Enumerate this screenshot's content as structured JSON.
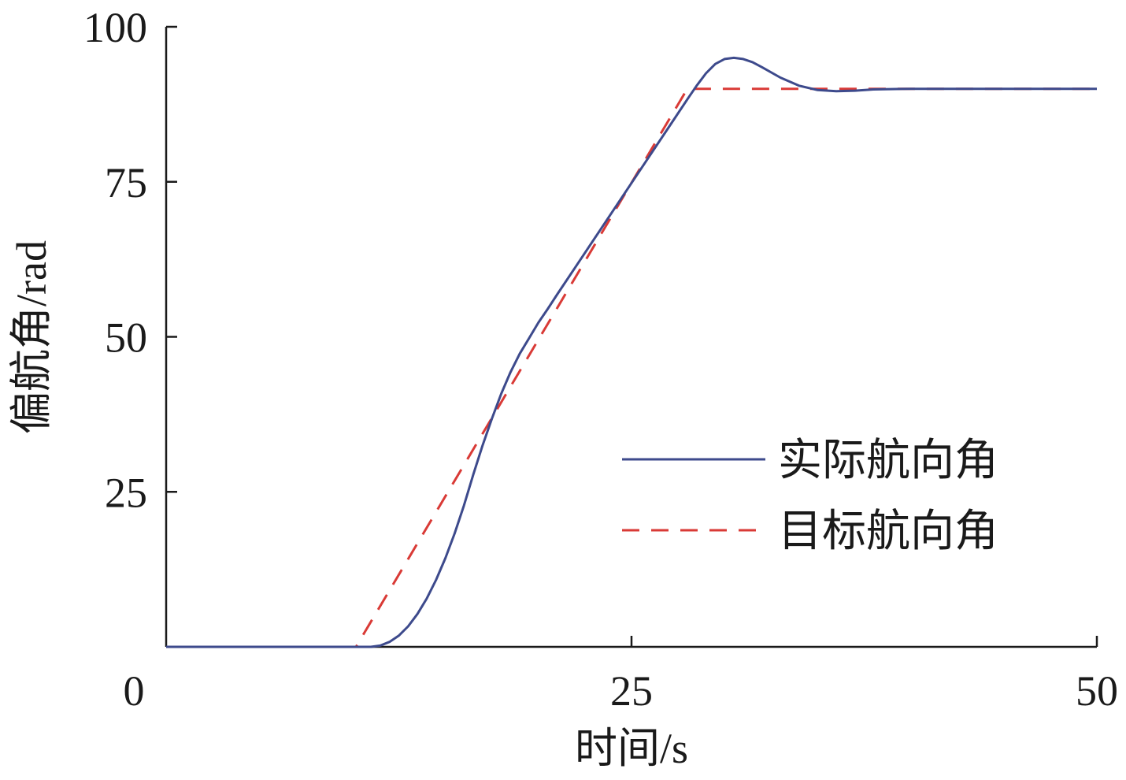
{
  "chart_data": {
    "type": "line",
    "xlabel": "时间/s",
    "ylabel": "偏航角/rad",
    "xlim": [
      0,
      50
    ],
    "ylim": [
      0,
      100
    ],
    "x_ticks": [
      0,
      25,
      50
    ],
    "x_tick_labels": [
      "0",
      "25",
      "50"
    ],
    "y_ticks": [
      25,
      50,
      75,
      100
    ],
    "y_tick_labels": [
      "25",
      "50",
      "75",
      "100"
    ],
    "grid": false,
    "legend_position": "center-right",
    "series": [
      {
        "name": "实际航向角",
        "color": "#3d4a8c",
        "line_style": "solid",
        "x": [
          0,
          10,
          11,
          11.5,
          12,
          12.5,
          13,
          13.5,
          14,
          14.5,
          15,
          15.5,
          16,
          16.5,
          17,
          17.5,
          18,
          18.5,
          19,
          19.5,
          20,
          20.5,
          21,
          22,
          23,
          24,
          25,
          26,
          27,
          28,
          28.5,
          29,
          29.5,
          30,
          30.5,
          31,
          31.5,
          32,
          33,
          34,
          35,
          36,
          37,
          38,
          40,
          42,
          44,
          46,
          48,
          50
        ],
        "y": [
          0,
          0,
          0,
          0.2,
          0.8,
          1.8,
          3.3,
          5.3,
          7.8,
          10.8,
          14.3,
          18.3,
          22.8,
          27.8,
          32.5,
          36.8,
          40.8,
          44.3,
          47.3,
          49.8,
          52.3,
          54.5,
          56.8,
          61.3,
          65.8,
          70.3,
          74.8,
          79.3,
          83.8,
          88.3,
          90.5,
          92.5,
          94.0,
          94.8,
          95.0,
          94.8,
          94.3,
          93.5,
          91.8,
          90.5,
          89.8,
          89.6,
          89.7,
          89.9,
          90.0,
          90.0,
          90.0,
          90.0,
          90.0,
          90.0
        ]
      },
      {
        "name": "目标航向角",
        "color": "#d93a36",
        "line_style": "dashed",
        "x": [
          0,
          10.2,
          28,
          50
        ],
        "y": [
          0,
          0,
          90,
          90
        ]
      }
    ]
  }
}
